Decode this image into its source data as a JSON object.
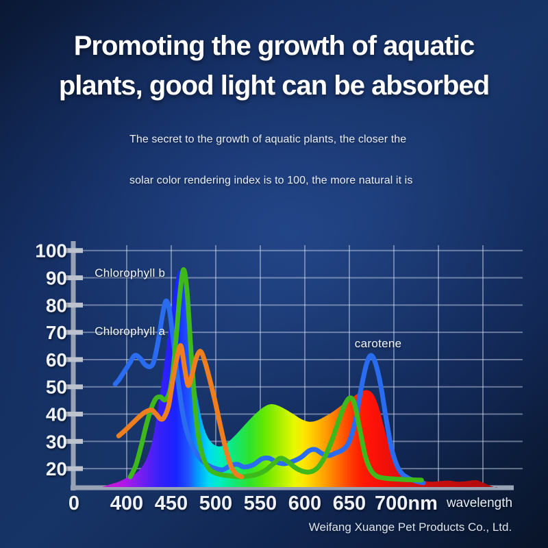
{
  "title": {
    "line1": "Promoting the growth of aquatic",
    "line2": "plants, good light can be absorbed"
  },
  "subtitle": {
    "line1": "The secret to the growth of aquatic plants, the closer the",
    "line2": "solar color rendering index is to 100, the more natural it is"
  },
  "footer": {
    "company": "Weifang Xuange Pet Products Co., Ltd."
  },
  "chart_data": {
    "type": "line",
    "xlabel": "wavelength",
    "origin_label": "0",
    "xlim": [
      340,
      845
    ],
    "ylim": [
      13,
      100
    ],
    "grid": true,
    "axis_color": "#98a2b5",
    "tick_color": "#bcc3cf",
    "grid_color": "rgba(215,225,242,0.45)",
    "xticks": [
      {
        "nm": 400,
        "label": "400"
      },
      {
        "nm": 450,
        "label": "450"
      },
      {
        "nm": 500,
        "label": "500"
      },
      {
        "nm": 550,
        "label": "550"
      },
      {
        "nm": 600,
        "label": "600"
      },
      {
        "nm": 650,
        "label": "650"
      },
      {
        "nm": 700,
        "label": "700nm"
      }
    ],
    "grid_x_nm": [
      400,
      450,
      500,
      550,
      600,
      650,
      700,
      750,
      800
    ],
    "yticks": [
      {
        "v": 20,
        "label": "20"
      },
      {
        "v": 30,
        "label": "30"
      },
      {
        "v": 40,
        "label": "40"
      },
      {
        "v": 50,
        "label": "50"
      },
      {
        "v": 60,
        "label": "60"
      },
      {
        "v": 70,
        "label": "70"
      },
      {
        "v": 80,
        "label": "80"
      },
      {
        "v": 90,
        "label": "90"
      },
      {
        "v": 100,
        "label": "100"
      }
    ],
    "annotations": [
      {
        "text": "Chlorophyll b",
        "nm": 364,
        "value": 91.5
      },
      {
        "text": "Chlorophyll a",
        "nm": 364,
        "value": 70
      },
      {
        "text": "carotene",
        "nm": 656,
        "value": 65.5
      }
    ],
    "series": [
      {
        "name": "Chlorophyll a",
        "color": "#2a6cf0",
        "width": 7,
        "points": [
          [
            387,
            51
          ],
          [
            391,
            52.5
          ],
          [
            397,
            55.5
          ],
          [
            403,
            58.5
          ],
          [
            409,
            61.5
          ],
          [
            415,
            60.5
          ],
          [
            421,
            58
          ],
          [
            427,
            57.5
          ],
          [
            431,
            60
          ],
          [
            436,
            68
          ],
          [
            440,
            76
          ],
          [
            444,
            81.5
          ],
          [
            448,
            78
          ],
          [
            452,
            68
          ],
          [
            457,
            54
          ],
          [
            462,
            42
          ],
          [
            468,
            33
          ],
          [
            475,
            27.5
          ],
          [
            482,
            24
          ],
          [
            490,
            21.5
          ],
          [
            500,
            20
          ],
          [
            508,
            19.6
          ],
          [
            516,
            21
          ],
          [
            524,
            21.6
          ],
          [
            532,
            20.6
          ],
          [
            542,
            21.4
          ],
          [
            552,
            23.6
          ],
          [
            560,
            23.8
          ],
          [
            568,
            22.4
          ],
          [
            577,
            21.8
          ],
          [
            586,
            22.6
          ],
          [
            596,
            24.2
          ],
          [
            605,
            26.6
          ],
          [
            612,
            27
          ],
          [
            619,
            25.6
          ],
          [
            627,
            24.8
          ],
          [
            635,
            25.8
          ],
          [
            643,
            27
          ],
          [
            650,
            30
          ],
          [
            657,
            38
          ],
          [
            663,
            49
          ],
          [
            669,
            58
          ],
          [
            674,
            61.5
          ],
          [
            679,
            59
          ],
          [
            685,
            51
          ],
          [
            691,
            39
          ],
          [
            697,
            28
          ],
          [
            703,
            21.5
          ],
          [
            709,
            18.2
          ],
          [
            717,
            16.4
          ],
          [
            725,
            15.4
          ],
          [
            733,
            14.8
          ]
        ]
      },
      {
        "name": "Chlorophyll b",
        "color": "#3eb81a",
        "width": 7,
        "points": [
          [
            404,
            17
          ],
          [
            410,
            21
          ],
          [
            416,
            28
          ],
          [
            422,
            36
          ],
          [
            428,
            42.5
          ],
          [
            433,
            45.8
          ],
          [
            438,
            46.3
          ],
          [
            443,
            45.2
          ],
          [
            448,
            48
          ],
          [
            452,
            56
          ],
          [
            456,
            70
          ],
          [
            460,
            85
          ],
          [
            464,
            93
          ],
          [
            468,
            84
          ],
          [
            472,
            64
          ],
          [
            476,
            46
          ],
          [
            480,
            33
          ],
          [
            485,
            25
          ],
          [
            491,
            20.5
          ],
          [
            498,
            18.6
          ],
          [
            506,
            17.8
          ],
          [
            515,
            17.4
          ],
          [
            525,
            17
          ],
          [
            535,
            17.2
          ],
          [
            545,
            17.8
          ],
          [
            555,
            19.2
          ],
          [
            564,
            21.6
          ],
          [
            572,
            23.8
          ],
          [
            580,
            22.8
          ],
          [
            589,
            20.4
          ],
          [
            598,
            19
          ],
          [
            606,
            18.8
          ],
          [
            614,
            20.2
          ],
          [
            622,
            24
          ],
          [
            630,
            30
          ],
          [
            638,
            37.5
          ],
          [
            645,
            43.5
          ],
          [
            651,
            46
          ],
          [
            656,
            43.5
          ],
          [
            662,
            34
          ],
          [
            668,
            24.5
          ],
          [
            674,
            19.5
          ],
          [
            681,
            17.2
          ],
          [
            690,
            16.5
          ],
          [
            700,
            16.2
          ],
          [
            712,
            16
          ],
          [
            722,
            15.9
          ],
          [
            731,
            15.8
          ]
        ]
      },
      {
        "name": "carotene",
        "color": "#ef7e1e",
        "width": 7,
        "points": [
          [
            391,
            32
          ],
          [
            398,
            34
          ],
          [
            406,
            36.5
          ],
          [
            414,
            39
          ],
          [
            421,
            40.8
          ],
          [
            428,
            41.5
          ],
          [
            433,
            40
          ],
          [
            438,
            38.2
          ],
          [
            442,
            38.8
          ],
          [
            447,
            43
          ],
          [
            452,
            53
          ],
          [
            457,
            61.5
          ],
          [
            461,
            65
          ],
          [
            465,
            57
          ],
          [
            469,
            50.5
          ],
          [
            473,
            54
          ],
          [
            478,
            60.5
          ],
          [
            483,
            63
          ],
          [
            488,
            59
          ],
          [
            493,
            53
          ],
          [
            499,
            45
          ],
          [
            505,
            36
          ],
          [
            511,
            27.5
          ],
          [
            517,
            21
          ],
          [
            523,
            18
          ],
          [
            529,
            17
          ]
        ]
      }
    ],
    "spectrum_fill": {
      "points": [
        [
          372,
          13.2
        ],
        [
          381,
          14.2
        ],
        [
          391,
          15.2
        ],
        [
          400,
          16.6
        ],
        [
          409,
          18
        ],
        [
          417,
          20.5
        ],
        [
          424,
          25
        ],
        [
          430,
          32
        ],
        [
          436,
          44
        ],
        [
          442,
          58
        ],
        [
          448,
          73
        ],
        [
          453,
          85
        ],
        [
          458,
          92.5
        ],
        [
          463,
          89
        ],
        [
          468,
          77
        ],
        [
          473,
          62
        ],
        [
          479,
          47
        ],
        [
          485,
          37
        ],
        [
          491,
          31.5
        ],
        [
          498,
          28.8
        ],
        [
          506,
          28.2
        ],
        [
          514,
          29.8
        ],
        [
          523,
          32.6
        ],
        [
          533,
          36.2
        ],
        [
          543,
          39.6
        ],
        [
          553,
          42.4
        ],
        [
          561,
          43.6
        ],
        [
          569,
          43.2
        ],
        [
          578,
          41.8
        ],
        [
          588,
          39.8
        ],
        [
          597,
          38
        ],
        [
          605,
          37.2
        ],
        [
          613,
          37.6
        ],
        [
          622,
          39
        ],
        [
          632,
          41
        ],
        [
          642,
          43.4
        ],
        [
          652,
          45.8
        ],
        [
          661,
          47.8
        ],
        [
          669,
          48.8
        ],
        [
          676,
          47.6
        ],
        [
          682,
          43.5
        ],
        [
          688,
          36.5
        ],
        [
          694,
          29
        ],
        [
          700,
          23
        ],
        [
          706,
          19.5
        ],
        [
          713,
          17.4
        ],
        [
          722,
          16.4
        ],
        [
          732,
          15.6
        ],
        [
          742,
          15.2
        ],
        [
          752,
          15.4
        ],
        [
          762,
          15.6
        ],
        [
          772,
          15.2
        ],
        [
          782,
          15.4
        ],
        [
          792,
          15.8
        ],
        [
          799,
          15
        ],
        [
          806,
          14
        ],
        [
          812,
          13.3
        ],
        [
          816,
          13.1
        ]
      ],
      "gradient": [
        [
          372,
          "#c818c8"
        ],
        [
          395,
          "#b418e6"
        ],
        [
          415,
          "#7a1ef0"
        ],
        [
          435,
          "#3c20f8"
        ],
        [
          455,
          "#1822ff"
        ],
        [
          470,
          "#1e56ff"
        ],
        [
          480,
          "#00a0ff"
        ],
        [
          492,
          "#00dcf0"
        ],
        [
          505,
          "#00eec0"
        ],
        [
          520,
          "#10e878"
        ],
        [
          538,
          "#2ee22e"
        ],
        [
          555,
          "#66e800"
        ],
        [
          572,
          "#a8f000"
        ],
        [
          588,
          "#e8f800"
        ],
        [
          600,
          "#ffe400"
        ],
        [
          612,
          "#ffc000"
        ],
        [
          625,
          "#ff9800"
        ],
        [
          638,
          "#ff6c00"
        ],
        [
          650,
          "#ff4000"
        ],
        [
          662,
          "#ff2000"
        ],
        [
          675,
          "#ff1208"
        ],
        [
          690,
          "#f01008"
        ],
        [
          710,
          "#dc1010"
        ],
        [
          735,
          "#cc0f0f"
        ],
        [
          760,
          "#c40d0d"
        ],
        [
          790,
          "#b80c0c"
        ],
        [
          815,
          "#a80b0b"
        ]
      ]
    }
  }
}
